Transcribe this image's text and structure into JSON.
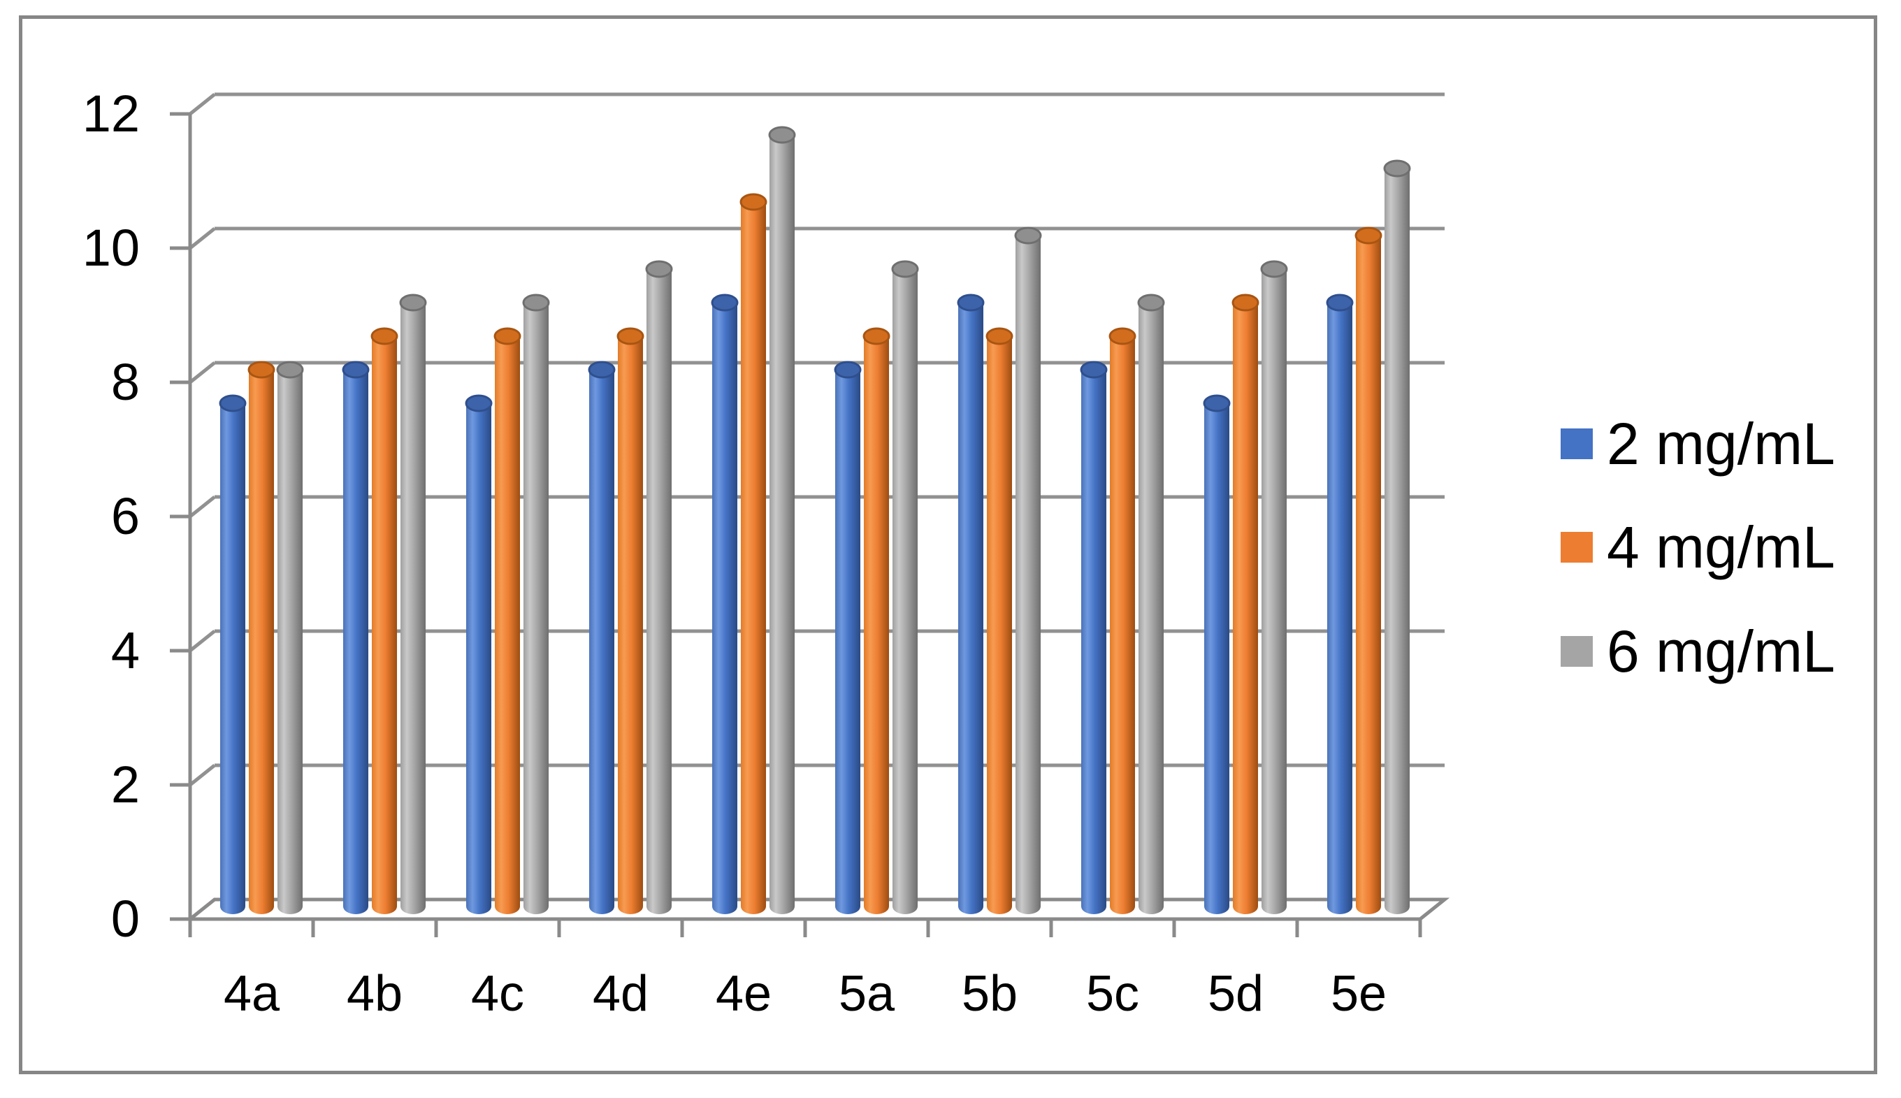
{
  "figure": {
    "background": "#ffffff",
    "frame_border_color": "#868686"
  },
  "chart_data": {
    "type": "bar",
    "style": "3d-cylinder",
    "title": "",
    "xlabel": "",
    "ylabel": "",
    "grid": true,
    "gridline_color": "#919191",
    "axis_color": "#8a8a8a",
    "text_color": "#000000",
    "categories": [
      "4a",
      "4b",
      "4c",
      "4d",
      "4e",
      "5a",
      "5b",
      "5c",
      "5d",
      "5e"
    ],
    "series": [
      {
        "name": "2 mg/mL",
        "color": "#4472C4",
        "values": [
          7.5,
          8,
          7.5,
          8,
          9,
          8,
          9,
          8,
          7.5,
          9
        ],
        "shades": {
          "edge": "#4a72b8",
          "light": "#6f99e0",
          "base": "#4472c4",
          "dark": "#2a4a85",
          "cap": "#3d63aa",
          "cap_rim": "#2f4f8d"
        }
      },
      {
        "name": "4 mg/mL",
        "color": "#ED7D31",
        "values": [
          8,
          8.5,
          8.5,
          8.5,
          10.5,
          8.5,
          8.5,
          8.5,
          9,
          10
        ],
        "shades": {
          "edge": "#e27b27",
          "light": "#f79b52",
          "base": "#ed7d31",
          "dark": "#9d4d11",
          "cap": "#d26d1e",
          "cap_rim": "#a85512"
        }
      },
      {
        "name": "6 mg/mL",
        "color": "#A5A5A5",
        "values": [
          8,
          9,
          9,
          9.5,
          11.5,
          9.5,
          10,
          9,
          9.5,
          11
        ],
        "shades": {
          "edge": "#9f9f9f",
          "light": "#c9c9c9",
          "base": "#a6a6a6",
          "dark": "#6e6e6e",
          "cap": "#8f8f8f",
          "cap_rim": "#6f6f6f"
        }
      }
    ],
    "y_axis": {
      "min": 0,
      "max": 12,
      "step": 2,
      "tick_labels": [
        "0",
        "2",
        "4",
        "6",
        "8",
        "10",
        "12"
      ]
    },
    "x_axis": {
      "tick_labels": [
        "4a",
        "4b",
        "4c",
        "4d",
        "4e",
        "5a",
        "5b",
        "5c",
        "5d",
        "5e"
      ]
    },
    "legend": {
      "position": "right",
      "items": [
        "2 mg/mL",
        "4 mg/mL",
        "6 mg/mL"
      ]
    }
  }
}
